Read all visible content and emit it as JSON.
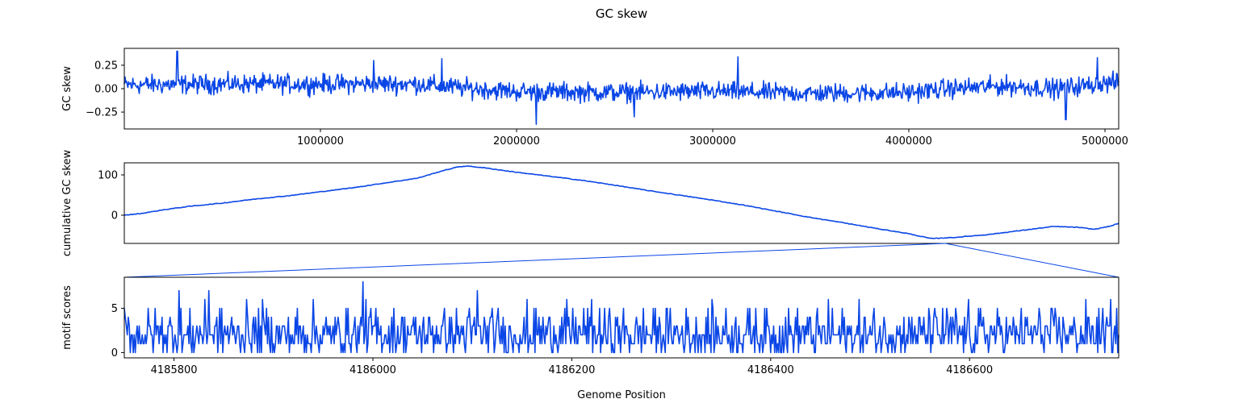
{
  "chart_data": {
    "title": "GC skew",
    "xlabel": "Genome Position",
    "series_color": "#0a46e6",
    "panels": [
      {
        "type": "line",
        "ylabel": "GC skew",
        "xlim": [
          0,
          5070000
        ],
        "ylim": [
          -0.43,
          0.43
        ],
        "xticks": [
          1000000,
          2000000,
          3000000,
          4000000,
          5000000
        ],
        "xtick_labels": [
          "1000000",
          "2000000",
          "3000000",
          "4000000",
          "5000000"
        ],
        "yticks": [
          0.25,
          0.0,
          -0.25
        ],
        "ytick_labels": [
          "0.25",
          "0.00",
          "−0.25"
        ],
        "noise": {
          "points": 1400,
          "amplitude": 0.1
        },
        "trend": [
          [
            0,
            0.04
          ],
          [
            500000,
            0.05
          ],
          [
            1000000,
            0.05
          ],
          [
            1500000,
            0.05
          ],
          [
            1650000,
            0.02
          ],
          [
            2000000,
            -0.03
          ],
          [
            2500000,
            -0.04
          ],
          [
            3000000,
            -0.03
          ],
          [
            3500000,
            -0.05
          ],
          [
            4000000,
            -0.04
          ],
          [
            4200000,
            0.0
          ],
          [
            4500000,
            0.03
          ],
          [
            4750000,
            0.0
          ],
          [
            5070000,
            0.07
          ]
        ],
        "spikes": [
          [
            270000,
            0.4
          ],
          [
            1270000,
            0.3
          ],
          [
            1620000,
            0.32
          ],
          [
            2100000,
            -0.38
          ],
          [
            2600000,
            -0.3
          ],
          [
            3130000,
            0.34
          ],
          [
            4800000,
            -0.33
          ],
          [
            4960000,
            0.33
          ]
        ]
      },
      {
        "type": "line",
        "ylabel": "cumulative GC skew",
        "xlim": [
          0,
          5070000
        ],
        "ylim": [
          -70,
          130
        ],
        "yticks": [
          100,
          0
        ],
        "ytick_labels": [
          "100",
          "0"
        ],
        "points": [
          [
            0,
            0
          ],
          [
            100000,
            4
          ],
          [
            250000,
            14
          ],
          [
            400000,
            22
          ],
          [
            600000,
            30
          ],
          [
            800000,
            40
          ],
          [
            1000000,
            48
          ],
          [
            1200000,
            58
          ],
          [
            1400000,
            68
          ],
          [
            1600000,
            80
          ],
          [
            1800000,
            92
          ],
          [
            1950000,
            110
          ],
          [
            2050000,
            120
          ],
          [
            2100000,
            122
          ],
          [
            2200000,
            118
          ],
          [
            2400000,
            107
          ],
          [
            2600000,
            97
          ],
          [
            2800000,
            87
          ],
          [
            3000000,
            75
          ],
          [
            3200000,
            62
          ],
          [
            3400000,
            50
          ],
          [
            3600000,
            38
          ],
          [
            3800000,
            25
          ],
          [
            4000000,
            10
          ],
          [
            4200000,
            -5
          ],
          [
            4400000,
            -18
          ],
          [
            4600000,
            -32
          ],
          [
            4800000,
            -45
          ],
          [
            4950000,
            -58
          ],
          [
            5100000,
            -55
          ],
          [
            5300000,
            -48
          ],
          [
            5500000,
            -38
          ],
          [
            5700000,
            -28
          ],
          [
            5850000,
            -30
          ],
          [
            5950000,
            -35
          ],
          [
            6050000,
            -27
          ],
          [
            6100000,
            -20
          ]
        ],
        "noise_amplitude": 1.5,
        "x_scale": 0.8311
      },
      {
        "type": "line",
        "ylabel": "motif scores",
        "xlim": [
          4185750,
          4186750
        ],
        "ylim": [
          -0.6,
          8.5
        ],
        "xticks": [
          4185800,
          4186000,
          4186200,
          4186400,
          4186600
        ],
        "xtick_labels": [
          "4185800",
          "4186000",
          "4186200",
          "4186400",
          "4186600"
        ],
        "yticks": [
          5,
          0
        ],
        "ytick_labels": [
          "5",
          "0"
        ],
        "points_count": 1000,
        "peaks": [
          [
            4185805,
            7
          ],
          [
            4185835,
            7
          ],
          [
            4185990,
            8
          ],
          [
            4186105,
            7
          ]
        ]
      }
    ],
    "zoom_window": {
      "start": 4185750,
      "end": 4186750
    }
  }
}
